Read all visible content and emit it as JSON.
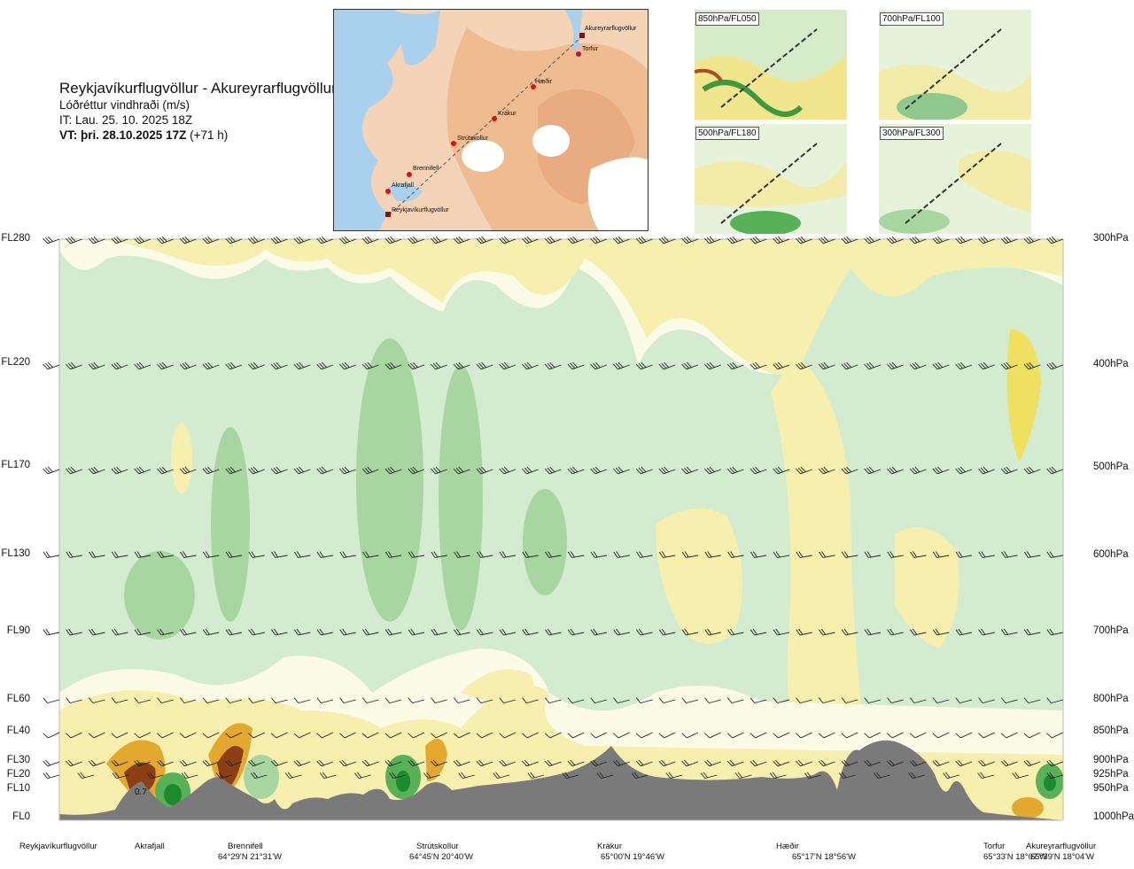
{
  "header": {
    "route": "Reykjavíkurflugvöllur - Akureyrarflugvöllur",
    "product": "Lóðréttur vindhraði (m/s)",
    "it": "IT: Lau. 25. 10. 2025 18Z",
    "vt_main": "VT: þri. 28.10.2025 17Z",
    "vt_offset": "(+71 h)"
  },
  "route_map": {
    "waypoints": [
      "Akureyrarflugvöllur",
      "Torfur",
      "Hæðir",
      "Krákur",
      "Strútskollur",
      "Brennifell",
      "Akrafjall",
      "Reykjavíkurflugvöllur"
    ]
  },
  "level_maps": [
    {
      "label": "850hPa/FL050"
    },
    {
      "label": "700hPa/FL100"
    },
    {
      "label": "500hPa/FL180"
    },
    {
      "label": "300hPa/FL300"
    }
  ],
  "chart_data": {
    "type": "heatmap",
    "title": "Lóðréttur vindhraði (m/s)",
    "left_axis_levels": [
      "FL280",
      "FL220",
      "FL170",
      "FL130",
      "FL90",
      "FL60",
      "FL40",
      "FL30",
      "FL20",
      "FL10",
      "FL0"
    ],
    "right_axis_levels": [
      "300hPa",
      "400hPa",
      "500hPa",
      "600hPa",
      "700hPa",
      "800hPa",
      "850hPa",
      "900hPa",
      "925hPa",
      "950hPa",
      "1000hPa"
    ],
    "stations": [
      {
        "name": "Reykjavíkurflugvöllur",
        "coord": ""
      },
      {
        "name": "Akrafjall",
        "coord": ""
      },
      {
        "name": "Brennifell",
        "coord": "64°29'N 21°31'W"
      },
      {
        "name": "Strútskollur",
        "coord": "64°45'N 20°40'W"
      },
      {
        "name": "Krákur",
        "coord": "65°00'N 19°46'W"
      },
      {
        "name": "Hæðir",
        "coord": "65°17'N 18°56'W"
      },
      {
        "name": "Torfur",
        "coord": "65°33'N 18°07'W"
      },
      {
        "name": "Akureyrarflugvöllur",
        "coord": "65°39'N 18°04'W"
      }
    ],
    "annotation": "0.7",
    "colors": {
      "updraft_weak": "#f6efae",
      "updraft_mid": "#efe060",
      "updraft_strong": "#e3a92f",
      "updraft_max": "#8b3f14",
      "downdraft_weak": "#d3ecd0",
      "downdraft_mid": "#a8d6a0",
      "downdraft_strong": "#57b257",
      "downdraft_max": "#1c8a2e",
      "terrain": "#7a7a7a",
      "near_zero": "#fbfbe8"
    }
  }
}
